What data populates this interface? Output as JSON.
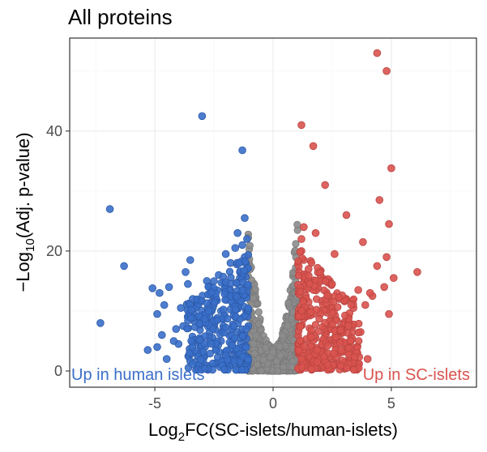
{
  "chart_data": {
    "type": "scatter",
    "title": "All proteins",
    "xlabel_main": "Log",
    "xlabel_sub": "2",
    "xlabel_rest": "FC(SC-islets/human-islets)",
    "ylabel_prefix": "−Log",
    "ylabel_sub": "10",
    "ylabel_rest": "(Adj. p-value)",
    "xlim": [
      -8.6,
      8.6
    ],
    "ylim": [
      -2.7,
      55.5
    ],
    "xticks": [
      -5,
      0,
      5
    ],
    "xtick_labels": [
      "-5",
      "0",
      "5"
    ],
    "yticks": [
      0,
      20,
      40
    ],
    "ytick_labels": [
      "0",
      "20",
      "40"
    ],
    "annotations": {
      "left": "Up in human islets",
      "right": "Up in SC-islets"
    },
    "colors": {
      "down": "#3a6fc9",
      "up": "#d9534f",
      "ns": "#8c8c8c"
    },
    "series": [
      {
        "name": "Up in human islets",
        "color": "#3a6fc9",
        "x": [
          -3.0,
          -1.3,
          -6.9,
          -7.3,
          -6.3,
          -5.1,
          -4.8,
          -4.6,
          -4.9,
          -4.4,
          -4.7,
          -4.9,
          -4.5,
          -4.1,
          -3.7,
          -3.6,
          -3.4,
          -3.2,
          -3.1,
          -3.0,
          -2.8,
          -2.6,
          -2.5,
          -2.4,
          -2.3,
          -2.2,
          -2.1,
          -2.0,
          -1.9,
          -1.8,
          -1.7,
          -1.6,
          -1.5,
          -1.4,
          -1.3,
          -1.2,
          -1.1,
          -3.5,
          -3.9,
          -4.0,
          -5.3,
          -3.3,
          -2.9,
          -2.7,
          -2.2,
          -1.8,
          -1.5,
          -1.2,
          -1.6,
          -1.4,
          -2.0,
          -2.6,
          -3.8,
          -4.2,
          -1.9,
          -1.1,
          -1.3,
          -2.4
        ],
        "y": [
          42.5,
          36.8,
          27.0,
          8.0,
          17.5,
          13.8,
          13.0,
          11.0,
          9.5,
          14.0,
          6.0,
          4.0,
          2.0,
          7.0,
          16.5,
          14.5,
          12.0,
          9.0,
          5.5,
          3.0,
          15.0,
          11.5,
          13.5,
          8.5,
          16.0,
          10.0,
          7.5,
          14.0,
          12.5,
          18.0,
          11.0,
          9.0,
          6.5,
          15.5,
          21.0,
          19.0,
          17.0,
          18.5,
          10.5,
          4.5,
          3.5,
          1.5,
          2.5,
          0.8,
          5.0,
          2.0,
          23.0,
          25.5,
          20.5,
          16.5,
          19.5,
          10.0,
          7.5,
          5.0,
          3.0,
          22.0,
          12.0,
          1.2
        ]
      },
      {
        "name": "Up in SC-islets",
        "color": "#d9534f",
        "x": [
          4.4,
          4.8,
          1.2,
          1.7,
          5.0,
          4.5,
          2.2,
          4.9,
          1.8,
          3.1,
          4.8,
          4.4,
          6.1,
          5.1,
          4.7,
          4.2,
          3.9,
          3.6,
          3.4,
          3.2,
          3.0,
          2.8,
          2.6,
          2.4,
          2.2,
          2.0,
          1.9,
          1.7,
          1.5,
          1.4,
          1.3,
          1.2,
          1.1,
          4.0,
          3.5,
          3.3,
          2.9,
          2.7,
          2.5,
          2.3,
          2.1,
          1.8,
          1.6,
          1.4,
          4.9,
          3.7,
          3.0,
          2.0,
          1.2,
          1.3,
          1.5,
          2.6,
          3.8,
          4.1
        ],
        "y": [
          53.0,
          50.0,
          41.0,
          37.5,
          33.8,
          28.5,
          31.0,
          24.5,
          23.0,
          26.0,
          19.0,
          17.5,
          16.5,
          15.5,
          14.0,
          12.5,
          11.0,
          13.5,
          10.5,
          9.0,
          8.0,
          12.0,
          7.0,
          15.0,
          6.0,
          10.0,
          14.5,
          9.5,
          11.5,
          16.0,
          18.5,
          20.0,
          7.5,
          2.0,
          1.5,
          4.0,
          5.0,
          3.0,
          2.5,
          1.0,
          3.5,
          5.5,
          2.2,
          0.8,
          9.5,
          6.5,
          4.5,
          1.2,
          22.0,
          24.0,
          17.0,
          19.5,
          21.5,
          13.0
        ]
      }
    ]
  }
}
